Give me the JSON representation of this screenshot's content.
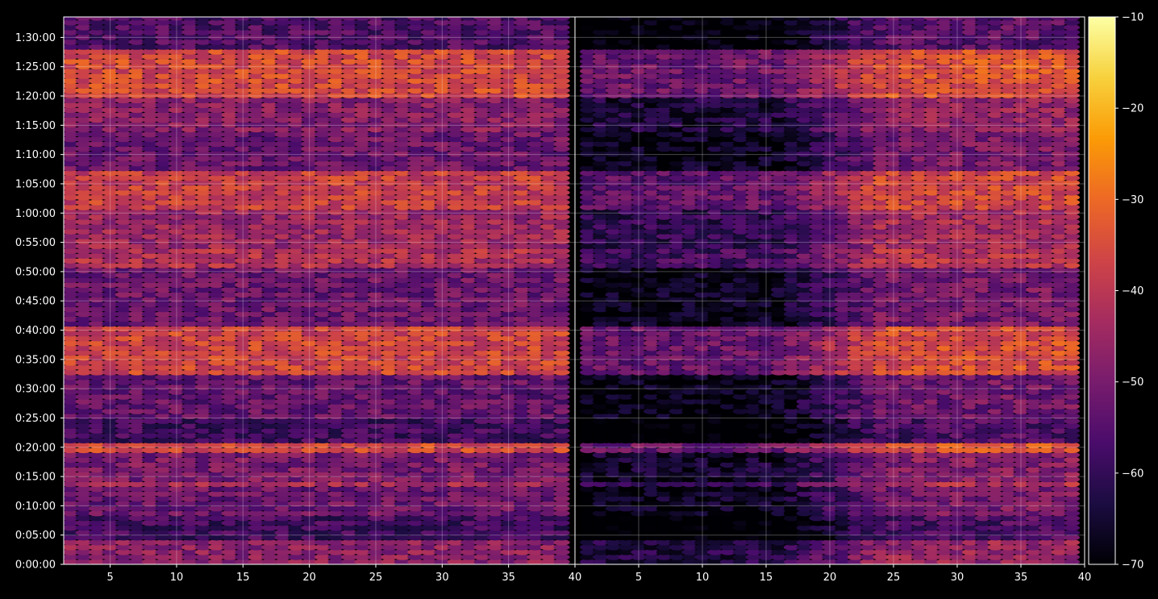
{
  "chart_data": {
    "type": "heatmap",
    "title": "",
    "xlabel": "",
    "ylabel": "",
    "background": "#000000",
    "colormap": "inferno",
    "colormap_stops": [
      "#000004",
      "#1b0c41",
      "#4a0c6b",
      "#781c6d",
      "#a52c60",
      "#cf4446",
      "#ed6925",
      "#fb9b06",
      "#f7d13d",
      "#fcffa4"
    ],
    "grid": true,
    "panels": [
      {
        "name": "left",
        "xlim": [
          1.5,
          40
        ],
        "xticks": [
          5,
          10,
          15,
          20,
          25,
          30,
          35,
          40
        ],
        "x_columns": [
          2,
          39
        ],
        "x_trend_percent_per_column": 0
      },
      {
        "name": "right",
        "xlim": [
          0,
          40
        ],
        "xticks": [
          5,
          10,
          15,
          20,
          25,
          30,
          35,
          40
        ],
        "x_columns": [
          1,
          39
        ],
        "x_trend_percent_per_column": 1
      }
    ],
    "yticks": [
      "0:00:00",
      "0:05:00",
      "0:10:00",
      "0:15:00",
      "0:20:00",
      "0:25:00",
      "0:30:00",
      "0:35:00",
      "0:40:00",
      "0:45:00",
      "0:50:00",
      "0:55:00",
      "1:00:00",
      "1:05:00",
      "1:10:00",
      "1:15:00",
      "1:20:00",
      "1:25:00",
      "1:30:00"
    ],
    "ylim_minutes": [
      0,
      93.5
    ],
    "row_step_minutes": 0.83,
    "band_profile": {
      "description": "average level (dB) by time-window, minutes",
      "bands": [
        {
          "t": [
            0,
            4
          ],
          "level": -47
        },
        {
          "t": [
            4,
            8.5
          ],
          "level": -58
        },
        {
          "t": [
            8.5,
            13
          ],
          "level": -52
        },
        {
          "t": [
            13,
            14
          ],
          "level": -44
        },
        {
          "t": [
            14,
            19
          ],
          "level": -50
        },
        {
          "t": [
            19,
            21
          ],
          "level": -36
        },
        {
          "t": [
            21,
            25
          ],
          "level": -58
        },
        {
          "t": [
            25,
            32
          ],
          "level": -53
        },
        {
          "t": [
            32,
            41
          ],
          "level": -37
        },
        {
          "t": [
            41,
            51
          ],
          "level": -52
        },
        {
          "t": [
            51,
            54
          ],
          "level": -42
        },
        {
          "t": [
            54,
            61
          ],
          "level": -45
        },
        {
          "t": [
            61,
            67
          ],
          "level": -38
        },
        {
          "t": [
            67,
            74
          ],
          "level": -52
        },
        {
          "t": [
            74,
            80
          ],
          "level": -48
        },
        {
          "t": [
            80,
            88
          ],
          "level": -36
        },
        {
          "t": [
            88,
            93.5
          ],
          "level": -56
        }
      ]
    },
    "colorbar": {
      "vmin": -70,
      "vmax": -10,
      "ticks": [
        "−10",
        "−20",
        "−30",
        "−40",
        "−50",
        "−60",
        "−70"
      ],
      "tick_values": [
        -10,
        -20,
        -30,
        -40,
        -50,
        -60,
        -70
      ]
    }
  }
}
